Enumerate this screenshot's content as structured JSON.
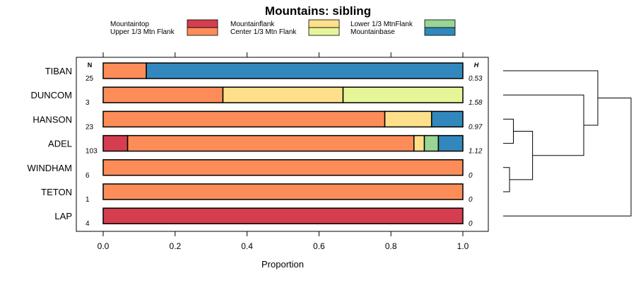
{
  "chart_data": {
    "type": "bar",
    "orientation": "horizontal",
    "stacked": true,
    "title": "Mountains: sibling",
    "xlabel": "Proportion",
    "xlim": [
      0,
      1
    ],
    "xticks": [
      "0.0",
      "0.2",
      "0.4",
      "0.6",
      "0.8",
      "1.0"
    ],
    "n_header": "N",
    "h_header": "H",
    "legend": [
      {
        "name": "Mountaintop",
        "color": "#d53e4f"
      },
      {
        "name": "Upper 1/3 Mtn Flank",
        "color": "#fc8d59"
      },
      {
        "name": "Mountainflank",
        "color": "#fee08b"
      },
      {
        "name": "Center 1/3 Mtn Flank",
        "color": "#e6f598"
      },
      {
        "name": "Lower 1/3 MtnFlank",
        "color": "#99d594"
      },
      {
        "name": "Mountainbase",
        "color": "#3288bd"
      }
    ],
    "categories": [
      "TIBAN",
      "DUNCOM",
      "HANSON",
      "ADEL",
      "WINDHAM",
      "TETON",
      "LAP"
    ],
    "n": [
      "25",
      "3",
      "23",
      "103",
      "6",
      "1",
      "4"
    ],
    "h": [
      "0.53",
      "1.58",
      "0.97",
      "1.12",
      "0",
      "0",
      "0"
    ],
    "series": [
      {
        "name": "Mountaintop",
        "values": [
          0,
          0,
          0,
          0.068,
          0,
          0,
          1
        ]
      },
      {
        "name": "Upper 1/3 Mtn Flank",
        "values": [
          0.12,
          0.333,
          0.783,
          0.796,
          1,
          1,
          0
        ]
      },
      {
        "name": "Mountainflank",
        "values": [
          0,
          0.334,
          0.13,
          0.029,
          0,
          0,
          0
        ]
      },
      {
        "name": "Center 1/3 Mtn Flank",
        "values": [
          0,
          0.333,
          0,
          0,
          0,
          0,
          0
        ]
      },
      {
        "name": "Lower 1/3 MtnFlank",
        "values": [
          0,
          0,
          0,
          0.039,
          0,
          0,
          0
        ]
      },
      {
        "name": "Mountainbase",
        "values": [
          0.88,
          0,
          0.087,
          0.068,
          0,
          0,
          0
        ]
      }
    ],
    "dendrogram": {
      "leaves": [
        "TIBAN",
        "DUNCOM",
        "HANSON",
        "ADEL",
        "WINDHAM",
        "TETON",
        "LAP"
      ],
      "merges": [
        {
          "a": "WINDHAM",
          "b": "TETON",
          "height": 0.05
        },
        {
          "a": "HANSON",
          "b": "ADEL",
          "height": 0.08
        },
        {
          "a": "node0",
          "b": "node1",
          "height": 0.23
        },
        {
          "a": "DUNCOM",
          "b": "node2",
          "height": 0.63
        },
        {
          "a": "TIBAN",
          "b": "node3",
          "height": 0.74
        },
        {
          "a": "node4",
          "b": "LAP",
          "height": 1.0
        }
      ]
    }
  }
}
